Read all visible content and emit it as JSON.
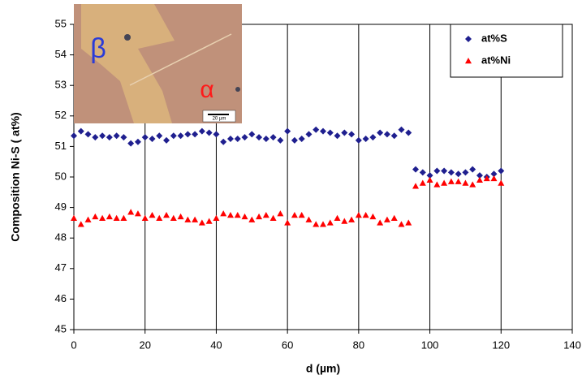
{
  "chart_data": {
    "type": "scatter",
    "x_label": "d (µm)",
    "y_label": "Composition Ni-S ( at%)",
    "x": [
      0,
      2,
      4,
      6,
      8,
      10,
      12,
      14,
      16,
      18,
      20,
      22,
      24,
      26,
      28,
      30,
      32,
      34,
      36,
      38,
      40,
      42,
      44,
      46,
      48,
      50,
      52,
      54,
      56,
      58,
      60,
      62,
      64,
      66,
      68,
      70,
      72,
      74,
      76,
      78,
      80,
      82,
      84,
      86,
      88,
      90,
      92,
      94,
      96,
      98,
      100,
      102,
      104,
      106,
      108,
      110,
      112,
      114,
      116,
      118,
      120
    ],
    "series": [
      {
        "name": "at%S",
        "color": "#1f1f8f",
        "marker": "diamond",
        "values": [
          51.35,
          51.5,
          51.4,
          51.3,
          51.35,
          51.3,
          51.35,
          51.3,
          51.1,
          51.15,
          51.3,
          51.25,
          51.35,
          51.2,
          51.35,
          51.35,
          51.4,
          51.4,
          51.5,
          51.45,
          51.4,
          51.15,
          51.25,
          51.25,
          51.3,
          51.4,
          51.3,
          51.25,
          51.3,
          51.2,
          51.5,
          51.2,
          51.25,
          51.4,
          51.55,
          51.5,
          51.45,
          51.35,
          51.45,
          51.4,
          51.2,
          51.25,
          51.3,
          51.45,
          51.4,
          51.35,
          51.55,
          51.45,
          50.25,
          50.15,
          50.05,
          50.2,
          50.2,
          50.15,
          50.1,
          50.15,
          50.25,
          50.05,
          50.0,
          50.1,
          50.2
        ]
      },
      {
        "name": "at%Ni",
        "color": "#ff0000",
        "marker": "triangle",
        "values": [
          48.65,
          48.45,
          48.6,
          48.7,
          48.65,
          48.7,
          48.65,
          48.65,
          48.85,
          48.8,
          48.65,
          48.75,
          48.65,
          48.75,
          48.65,
          48.7,
          48.6,
          48.6,
          48.5,
          48.55,
          48.65,
          48.8,
          48.75,
          48.75,
          48.7,
          48.6,
          48.7,
          48.75,
          48.65,
          48.8,
          48.5,
          48.75,
          48.75,
          48.6,
          48.45,
          48.45,
          48.5,
          48.65,
          48.55,
          48.6,
          48.75,
          48.75,
          48.7,
          48.5,
          48.6,
          48.65,
          48.45,
          48.5,
          49.7,
          49.8,
          49.9,
          49.75,
          49.8,
          49.85,
          49.85,
          49.8,
          49.75,
          49.9,
          49.95,
          49.95,
          49.8
        ]
      }
    ],
    "xlim": [
      0,
      140
    ],
    "xticks": [
      0,
      20,
      40,
      60,
      80,
      100,
      120,
      140
    ],
    "ylim": [
      45,
      55
    ],
    "yticks": [
      45,
      46,
      47,
      48,
      49,
      50,
      51,
      52,
      53,
      54,
      55
    ],
    "grid": "x",
    "legend": "top-right",
    "inset": {
      "phase_beta": "β",
      "phase_alpha": "α",
      "scale_bar": "20 µm"
    }
  }
}
